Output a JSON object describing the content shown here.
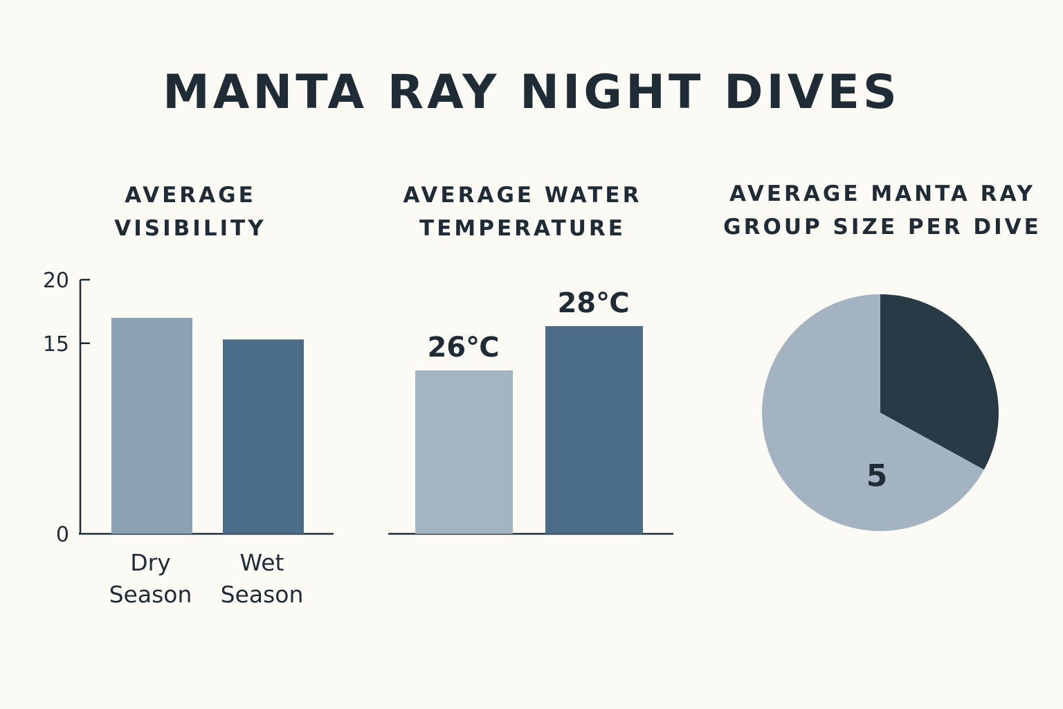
{
  "title": "MANTA RAY NIGHT DIVES",
  "colors": {
    "background": "#fbfaf5",
    "text": "#1f2b35",
    "bar_light": "#8ba2b4",
    "bar_dark": "#4b6d89",
    "bar_pale": "#a3b4c3",
    "pie_dark": "#293a47",
    "pie_light": "#a4b3c1"
  },
  "chart_data": [
    {
      "type": "bar",
      "title": "AVERAGE VISIBILITY",
      "title_lines": [
        "AVERAGE",
        "VISIBILITY"
      ],
      "categories": [
        "Dry Season",
        "Wet Season"
      ],
      "category_lines": [
        [
          "Dry",
          "Season"
        ],
        [
          "Wet",
          "Season"
        ]
      ],
      "values": [
        17,
        15.3
      ],
      "yticks": [
        0,
        15,
        20
      ],
      "ylim": [
        0,
        20
      ],
      "xlabel": "",
      "ylabel": ""
    },
    {
      "type": "bar",
      "title": "AVERAGE WATER TEMPERATURE",
      "title_lines": [
        "AVERAGE WATER",
        "TEMPERATURE"
      ],
      "categories": [
        "",
        ""
      ],
      "values": [
        26,
        28
      ],
      "data_labels": [
        "26℃",
        "28℃"
      ],
      "ylim": [
        26,
        28
      ],
      "xlabel": "",
      "ylabel": ""
    },
    {
      "type": "pie",
      "title": "AVERAGE MANTA RAY GROUP SIZE PER DIVE",
      "title_lines": [
        "AVERAGE MANTA RAY",
        "GROUP SIZE PER DIVE"
      ],
      "slices": [
        {
          "value": 33,
          "color": "#293a47"
        },
        {
          "value": 67,
          "color": "#a4b3c1"
        }
      ],
      "center_label": "5"
    }
  ]
}
